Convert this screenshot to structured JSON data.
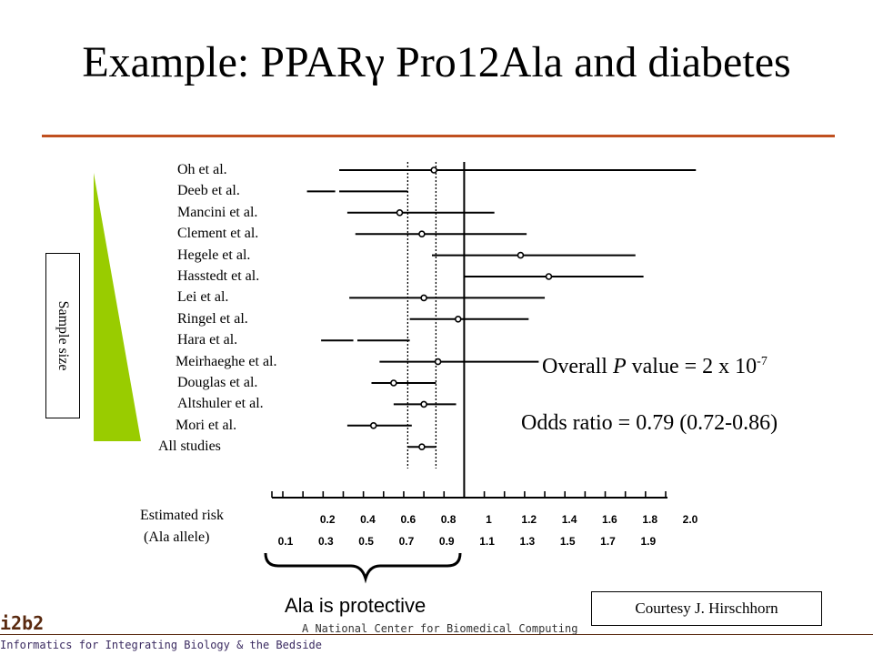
{
  "slide": {
    "title": "Example: PPARγ Pro12Ala and diabetes",
    "sample_size_label": "Sample size",
    "pvalue_prefix": "Overall ",
    "pvalue_italic": "P",
    "pvalue_mid": " value = 2 x 10",
    "pvalue_exp": "-7",
    "odds_ratio_text": "Odds ratio = 0.79 (0.72-0.86)",
    "risk_label_line1": "Estimated risk",
    "risk_label_line2": "(Ala allele)",
    "ala_protective": "Ala is protective",
    "courtesy": "Courtesy J. Hirschhorn",
    "logo": "i2b2",
    "footer_left": "Informatics for Integrating Biology & the Bedside",
    "footer_center": "A National Center for Biomedical Computing",
    "accent_color": "#c0501f",
    "wedge_color": "#99cc00"
  },
  "chart_data": {
    "type": "forest",
    "x_range": [
      0.1,
      2.0
    ],
    "ticks_top": [
      "0.2",
      "0.4",
      "0.6",
      "0.8",
      "1",
      "1.2",
      "1.4",
      "1.6",
      "1.8",
      "2.0"
    ],
    "ticks_bottom": [
      "0.1",
      "0.3",
      "0.5",
      "0.7",
      "0.9",
      "1.1",
      "1.3",
      "1.5",
      "1.7",
      "1.9"
    ],
    "reference_line": 1.0,
    "dotted_lines": [
      0.72,
      0.86
    ],
    "studies": [
      {
        "name": "Oh et al.",
        "or": 0.85,
        "lo": 0.38,
        "hi": 2.15
      },
      {
        "name": "Deeb et al.",
        "or": null,
        "lo": 0.22,
        "hi": 0.72,
        "gap": [
          0.36,
          0.38
        ]
      },
      {
        "name": "Mancini et al.",
        "or": 0.68,
        "lo": 0.42,
        "hi": 1.15
      },
      {
        "name": "Clement et al.",
        "or": 0.79,
        "lo": 0.46,
        "hi": 1.31
      },
      {
        "name": "Hegele et al.",
        "or": 1.28,
        "lo": 0.84,
        "hi": 1.85
      },
      {
        "name": "Hasstedt et al.",
        "or": 1.42,
        "lo": 1.0,
        "hi": 1.89
      },
      {
        "name": "Lei et al.",
        "or": 0.8,
        "lo": 0.43,
        "hi": 1.4
      },
      {
        "name": "Ringel et al.",
        "or": 0.97,
        "lo": 0.73,
        "hi": 1.32
      },
      {
        "name": "Hara et al.",
        "or": null,
        "lo": 0.29,
        "hi": 0.73,
        "gap": [
          0.45,
          0.47
        ]
      },
      {
        "name": "Meirhaeghe et al.",
        "or": 0.87,
        "lo": 0.58,
        "hi": 1.37
      },
      {
        "name": "Douglas et al.",
        "or": 0.65,
        "lo": 0.54,
        "hi": 0.86
      },
      {
        "name": "Altshuler et al.",
        "or": 0.8,
        "lo": 0.65,
        "hi": 0.96
      },
      {
        "name": "Mori et al.",
        "or": 0.55,
        "lo": 0.42,
        "hi": 0.74
      },
      {
        "name": "All studies",
        "or": 0.79,
        "lo": 0.72,
        "hi": 0.86
      }
    ]
  }
}
